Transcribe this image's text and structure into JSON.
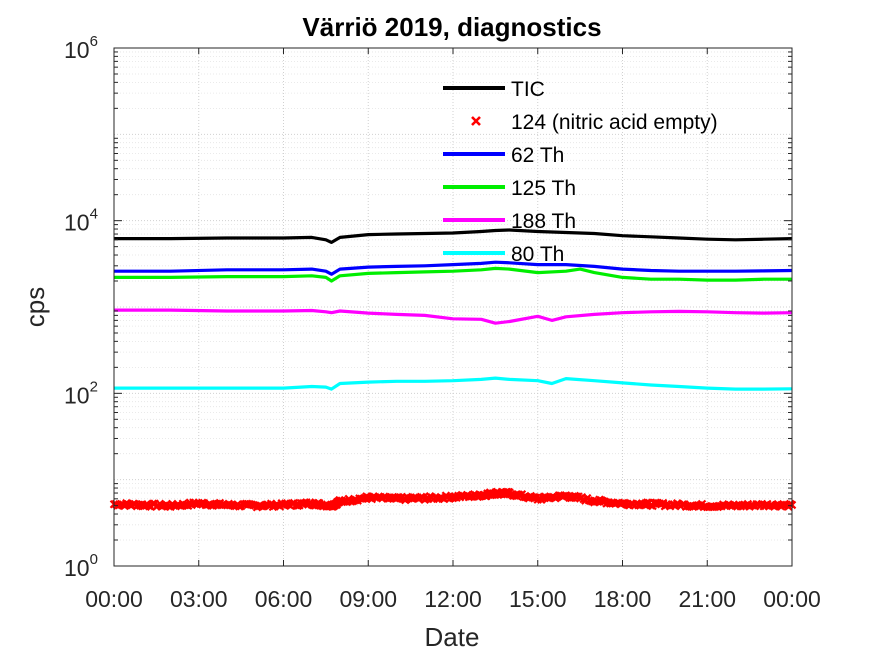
{
  "chart_data": {
    "type": "line",
    "title": "Värriö 2019, diagnostics",
    "xlabel": "Date",
    "ylabel": "cps",
    "x_unit": "hours",
    "xlim": [
      0,
      24
    ],
    "yscale": "log",
    "ylim": [
      1,
      1000000
    ],
    "x_ticks": [
      {
        "value": 0,
        "label": "00:00"
      },
      {
        "value": 3,
        "label": "03:00"
      },
      {
        "value": 6,
        "label": "06:00"
      },
      {
        "value": 9,
        "label": "09:00"
      },
      {
        "value": 12,
        "label": "12:00"
      },
      {
        "value": 15,
        "label": "15:00"
      },
      {
        "value": 18,
        "label": "18:00"
      },
      {
        "value": 21,
        "label": "21:00"
      },
      {
        "value": 24,
        "label": "00:00"
      }
    ],
    "y_ticks": [
      {
        "value": 1,
        "base": "10",
        "exp": "0"
      },
      {
        "value": 100,
        "base": "10",
        "exp": "2"
      },
      {
        "value": 10000,
        "base": "10",
        "exp": "4"
      },
      {
        "value": 1000000,
        "base": "10",
        "exp": "6"
      }
    ],
    "grid": true,
    "legend_position": "top-center",
    "series": [
      {
        "name": "TIC",
        "color": "#000000",
        "style": "line",
        "x": [
          0,
          2,
          4,
          6,
          7,
          7.5,
          7.7,
          8,
          9,
          10,
          11,
          12,
          13,
          13.5,
          14,
          15,
          16,
          17,
          18,
          19,
          20,
          21,
          22,
          23,
          24
        ],
        "y": [
          6200,
          6200,
          6300,
          6300,
          6400,
          6000,
          5600,
          6400,
          6900,
          7000,
          7100,
          7200,
          7500,
          7700,
          7800,
          7500,
          7300,
          7100,
          6700,
          6500,
          6300,
          6100,
          6000,
          6100,
          6200
        ]
      },
      {
        "name": "124 (nitric acid empty)",
        "color": "#ff0000",
        "style": "marker",
        "x": [
          0,
          1,
          2,
          3,
          4,
          5,
          6,
          7,
          7.7,
          8,
          9,
          10,
          11,
          12,
          13,
          13.5,
          14,
          15,
          16,
          17,
          18,
          19,
          20,
          21,
          22,
          23,
          24
        ],
        "y": [
          5.2,
          5.1,
          5.0,
          5.3,
          5.1,
          5.0,
          5.1,
          5.3,
          5.0,
          5.6,
          6.2,
          6.0,
          6.1,
          6.3,
          6.6,
          7.0,
          6.9,
          6.0,
          6.5,
          5.7,
          5.3,
          5.2,
          5.1,
          5.0,
          5.0,
          5.1,
          5.1
        ]
      },
      {
        "name": "62 Th",
        "color": "#0000ff",
        "style": "line",
        "x": [
          0,
          2,
          4,
          6,
          7,
          7.5,
          7.7,
          8,
          9,
          10,
          11,
          12,
          13,
          13.5,
          14,
          15,
          16,
          17,
          18,
          19,
          20,
          21,
          22,
          23,
          24
        ],
        "y": [
          2600,
          2600,
          2700,
          2700,
          2750,
          2600,
          2400,
          2750,
          2900,
          2950,
          3000,
          3100,
          3200,
          3300,
          3250,
          3100,
          3100,
          2950,
          2750,
          2650,
          2600,
          2600,
          2600,
          2620,
          2650
        ]
      },
      {
        "name": "125 Th",
        "color": "#00ee00",
        "style": "line",
        "x": [
          0,
          2,
          4,
          6,
          7,
          7.5,
          7.7,
          8,
          9,
          10,
          11,
          12,
          13,
          13.5,
          14,
          15,
          16,
          16.5,
          17,
          18,
          19,
          20,
          21,
          22,
          23,
          24
        ],
        "y": [
          2200,
          2200,
          2250,
          2250,
          2300,
          2200,
          2000,
          2300,
          2450,
          2500,
          2550,
          2600,
          2700,
          2800,
          2750,
          2500,
          2600,
          2750,
          2500,
          2200,
          2100,
          2100,
          2050,
          2050,
          2100,
          2100
        ]
      },
      {
        "name": "188 Th",
        "color": "#ff00ff",
        "style": "line",
        "x": [
          0,
          2,
          4,
          6,
          7,
          7.5,
          7.7,
          8,
          9,
          10,
          11,
          12,
          13,
          13.5,
          14,
          15,
          15.5,
          16,
          17,
          18,
          19,
          20,
          21,
          22,
          23,
          24
        ],
        "y": [
          920,
          920,
          900,
          900,
          910,
          880,
          860,
          900,
          850,
          820,
          800,
          730,
          720,
          650,
          680,
          780,
          700,
          770,
          820,
          860,
          880,
          890,
          880,
          860,
          850,
          860
        ]
      },
      {
        "name": "80 Th",
        "color": "#00ffff",
        "style": "line",
        "x": [
          0,
          2,
          4,
          6,
          7,
          7.5,
          7.7,
          8,
          9,
          10,
          11,
          12,
          13,
          13.5,
          14,
          15,
          15.5,
          16,
          17,
          18,
          19,
          20,
          21,
          22,
          23,
          24
        ],
        "y": [
          115,
          115,
          115,
          115,
          120,
          118,
          112,
          130,
          135,
          138,
          138,
          140,
          145,
          150,
          145,
          140,
          130,
          148,
          140,
          132,
          125,
          120,
          115,
          112,
          112,
          113
        ]
      }
    ]
  }
}
